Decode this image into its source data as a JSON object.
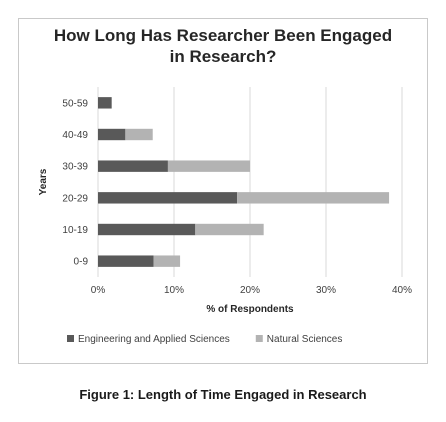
{
  "chart_data": {
    "type": "bar",
    "orientation": "horizontal",
    "stacked": true,
    "title": "How Long Has Researcher Been Engaged\nin Research?",
    "xlabel": "% of Respondents",
    "ylabel": "Years",
    "categories": [
      "50-59",
      "40-49",
      "30-39",
      "20-29",
      "10-19",
      "0-9"
    ],
    "series": [
      {
        "name": "Engineering and Applied Sciences",
        "color": "#595959",
        "values": [
          1.8,
          3.6,
          9.2,
          18.3,
          12.8,
          7.3
        ]
      },
      {
        "name": "Natural Sciences",
        "color": "#b3b3b3",
        "values": [
          0,
          3.6,
          10.8,
          20.0,
          9.0,
          3.5
        ]
      }
    ],
    "xlim": [
      0,
      40
    ],
    "xticks": [
      "0%",
      "10%",
      "20%",
      "30%",
      "40%"
    ],
    "grid": "vertical",
    "legend": "bottom"
  },
  "caption": "Figure 1: Length of Time Engaged in Research"
}
